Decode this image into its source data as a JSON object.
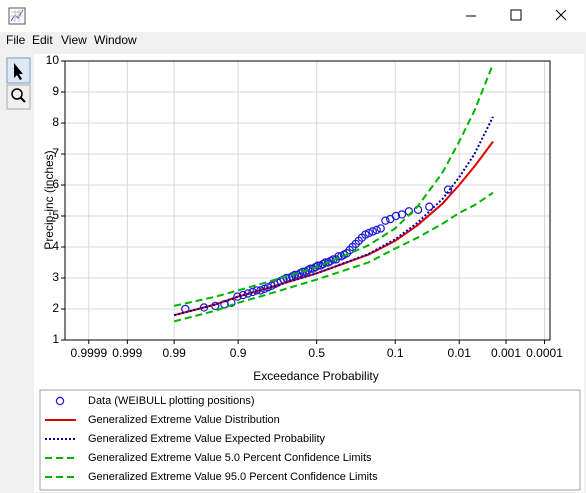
{
  "menu": [
    "File",
    "Edit",
    "View",
    "Window"
  ],
  "chart_data": {
    "type": "line",
    "xlabel": "Exceedance Probability",
    "ylabel": "Precip-inc (inches)",
    "xscale": "probability",
    "xlim": [
      0.99998,
      7e-05
    ],
    "xticks": [
      0.9999,
      0.999,
      0.99,
      0.9,
      0.5,
      0.1,
      0.01,
      0.001,
      0.0001
    ],
    "ylim": [
      1,
      10
    ],
    "yticks": [
      1,
      2,
      3,
      4,
      5,
      6,
      7,
      8,
      9,
      10
    ],
    "grid": true,
    "legend": "bottom",
    "series": [
      {
        "name": "Data (WEIBULL plotting positions)",
        "color": "#1a1ad6",
        "style": "marker",
        "x": [
          0.984,
          0.967,
          0.951,
          0.934,
          0.918,
          0.902,
          0.885,
          0.869,
          0.852,
          0.836,
          0.82,
          0.803,
          0.787,
          0.77,
          0.754,
          0.738,
          0.721,
          0.705,
          0.689,
          0.672,
          0.656,
          0.639,
          0.623,
          0.607,
          0.59,
          0.574,
          0.557,
          0.541,
          0.525,
          0.508,
          0.492,
          0.475,
          0.459,
          0.443,
          0.426,
          0.41,
          0.393,
          0.377,
          0.361,
          0.344,
          0.328,
          0.311,
          0.295,
          0.279,
          0.262,
          0.246,
          0.23,
          0.213,
          0.197,
          0.18,
          0.164,
          0.148,
          0.131,
          0.115,
          0.098,
          0.082,
          0.066,
          0.049,
          0.033,
          0.016
        ],
        "values": [
          2.0,
          2.05,
          2.1,
          2.15,
          2.2,
          2.4,
          2.45,
          2.5,
          2.55,
          2.6,
          2.6,
          2.65,
          2.7,
          2.75,
          2.8,
          2.85,
          2.9,
          2.95,
          3.0,
          3.0,
          3.05,
          3.1,
          3.1,
          3.15,
          3.2,
          3.2,
          3.25,
          3.3,
          3.3,
          3.35,
          3.4,
          3.4,
          3.45,
          3.5,
          3.5,
          3.55,
          3.6,
          3.6,
          3.7,
          3.7,
          3.75,
          3.8,
          3.9,
          4.0,
          4.1,
          4.2,
          4.3,
          4.4,
          4.45,
          4.5,
          4.55,
          4.6,
          4.85,
          4.9,
          5.0,
          5.05,
          5.15,
          5.2,
          5.3,
          5.85
        ]
      },
      {
        "name": "Generalized Extreme Value Distribution",
        "color": "#e00000",
        "style": "solid",
        "x": [
          0.99,
          0.95,
          0.9,
          0.8,
          0.5,
          0.2,
          0.1,
          0.05,
          0.02,
          0.01,
          0.005,
          0.002
        ],
        "values": [
          1.8,
          2.15,
          2.4,
          2.65,
          3.15,
          3.75,
          4.2,
          4.7,
          5.4,
          6.0,
          6.6,
          7.4
        ]
      },
      {
        "name": "Generalized Extreme Value Expected Probability",
        "color": "#00009c",
        "style": "dotted",
        "x": [
          0.99,
          0.95,
          0.9,
          0.8,
          0.5,
          0.2,
          0.1,
          0.05,
          0.02,
          0.01,
          0.005,
          0.002
        ],
        "values": [
          1.8,
          2.15,
          2.4,
          2.65,
          3.15,
          3.77,
          4.25,
          4.78,
          5.55,
          6.25,
          7.0,
          8.2
        ]
      },
      {
        "name": "Generalized Extreme Value 5.0 Percent Confidence Limits",
        "color": "#00b400",
        "style": "dashed",
        "x": [
          0.99,
          0.95,
          0.9,
          0.8,
          0.5,
          0.2,
          0.1,
          0.05,
          0.02,
          0.01,
          0.005,
          0.002
        ],
        "values": [
          2.1,
          2.4,
          2.6,
          2.85,
          3.35,
          4.05,
          4.6,
          5.3,
          6.4,
          7.4,
          8.4,
          9.9
        ]
      },
      {
        "name": "Generalized Extreme Value 95.0 Percent Confidence Limits",
        "color": "#00b400",
        "style": "dashed",
        "x": [
          0.99,
          0.95,
          0.9,
          0.8,
          0.5,
          0.2,
          0.1,
          0.05,
          0.02,
          0.01,
          0.005,
          0.002
        ],
        "values": [
          1.6,
          1.95,
          2.2,
          2.45,
          2.95,
          3.5,
          3.95,
          4.3,
          4.75,
          5.1,
          5.35,
          5.75
        ]
      }
    ]
  }
}
